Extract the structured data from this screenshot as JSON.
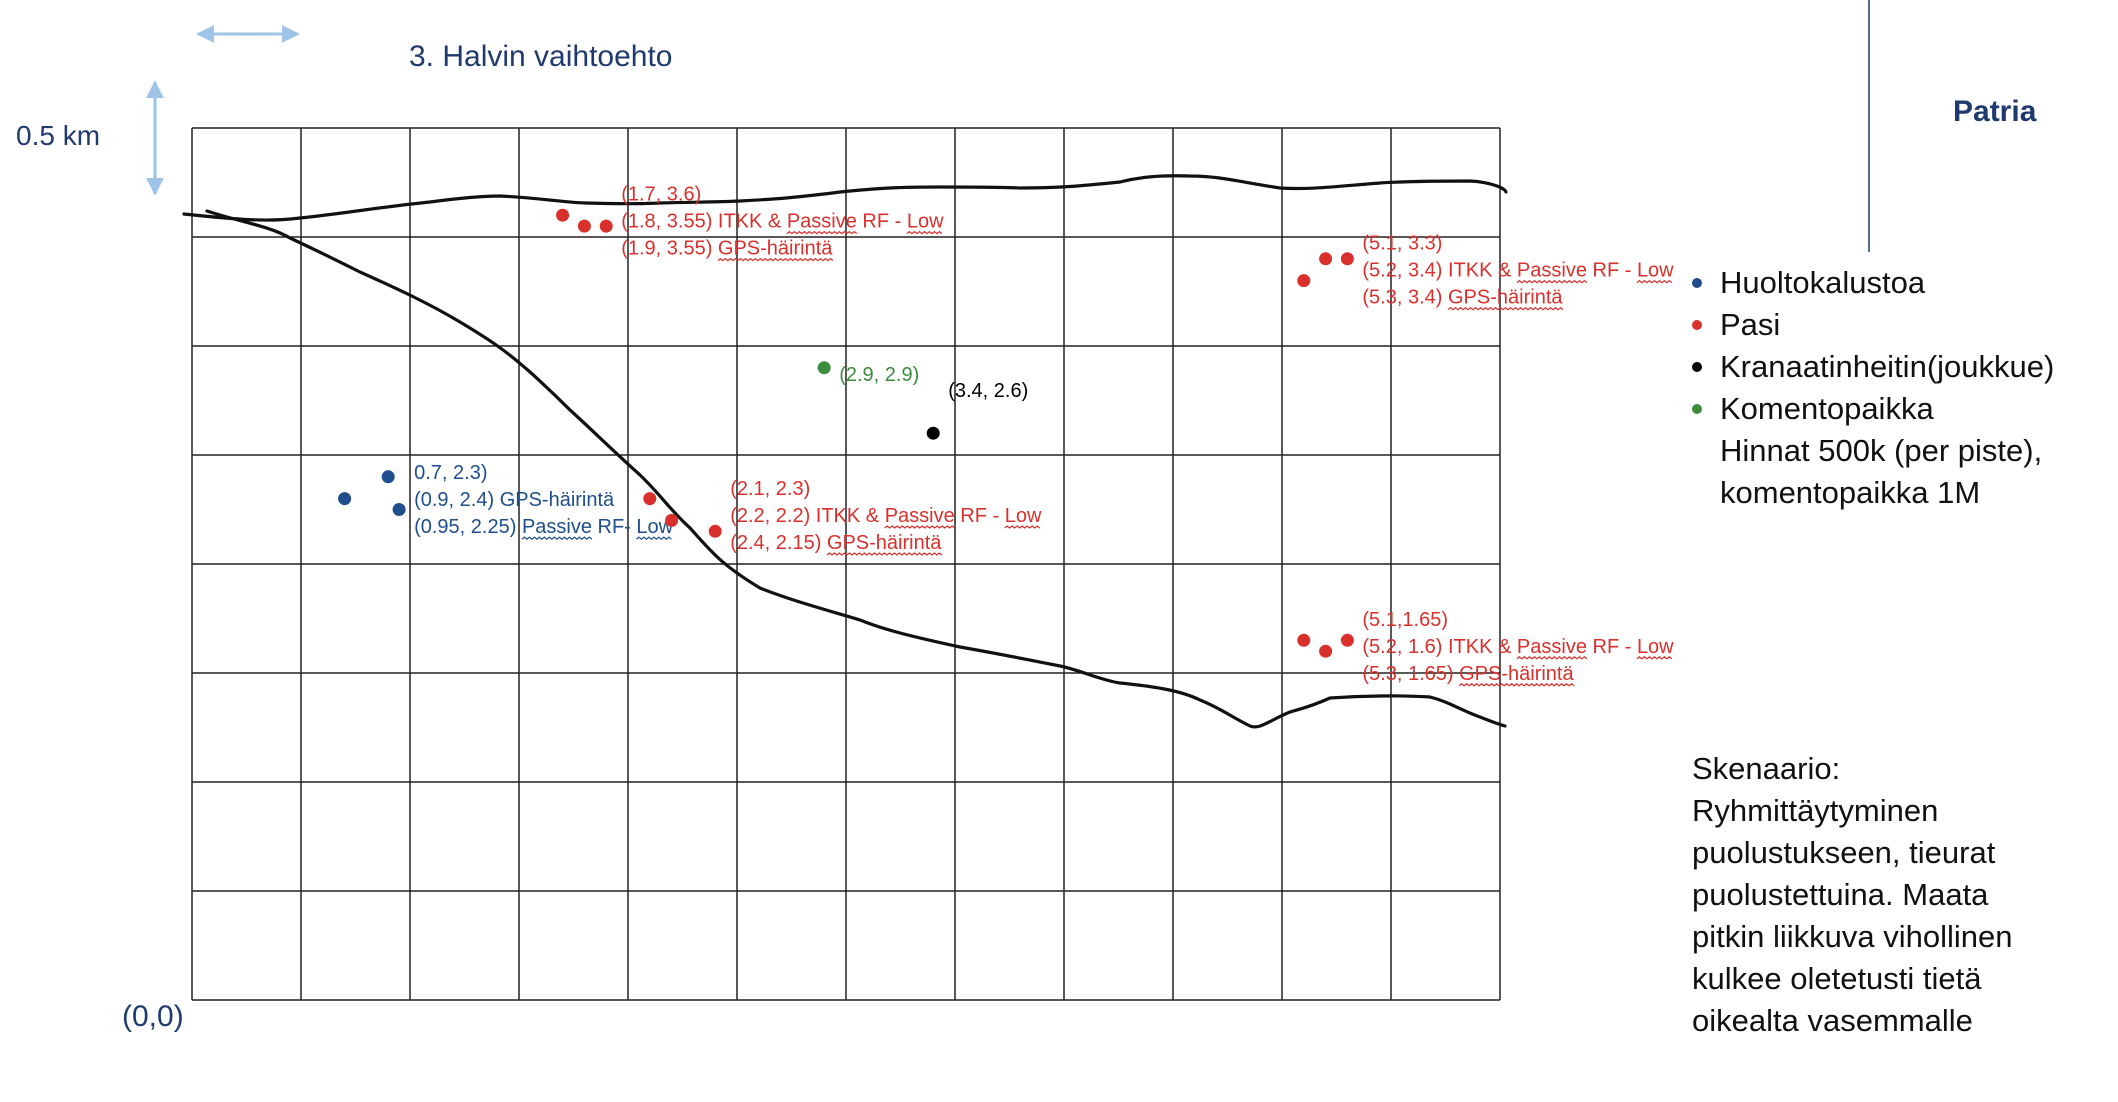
{
  "title": "3. Halvin vaihtoehto",
  "scale_label": "0.5 km",
  "origin_label": "(0,0)",
  "brand": "Patria",
  "colors": {
    "huolto": "#1f4e8c",
    "pasi": "#d9302c",
    "kranaatinheitin": "#000000",
    "komentopaikka": "#3c8c3c",
    "grid": "#222222",
    "arrow": "#9dc3e6",
    "text_blue": "#1f3a6e"
  },
  "legend": {
    "items": [
      {
        "label": "Huoltokalustoa",
        "color": "#1f4e8c"
      },
      {
        "label": "Pasi",
        "color": "#d9302c"
      },
      {
        "label": "Kranaatinheitin(joukkue)",
        "color": "#000000"
      },
      {
        "label": "Komentopaikka",
        "color": "#3c8c3c"
      }
    ],
    "notes": [
      "Hinnat 500k (per piste),",
      "komentopaikka 1M"
    ]
  },
  "scenario": [
    "Skenaario:",
    "Ryhmittäytyminen",
    "puolustukseen, tieurat",
    "puolustettuina. Maata",
    "pitkin liikkuva vihollinen",
    "kulkee oletetusti tietä",
    "oikealta vasemmalle"
  ],
  "groups": [
    {
      "type": "pasi",
      "points": [
        [
          1.7,
          3.6
        ],
        [
          1.8,
          3.55
        ],
        [
          1.9,
          3.55
        ]
      ],
      "labels": [
        [
          {
            "t": "(1.7, 3.6)"
          }
        ],
        [
          {
            "t": "(1.8, 3.55) ITKK & "
          },
          {
            "t": "Passive",
            "sq": true
          },
          {
            "t": " RF - "
          },
          {
            "t": "Low",
            "sq": true
          }
        ],
        [
          {
            "t": "(1.9, 3.55) "
          },
          {
            "t": "GPS-häirintä",
            "sq": true
          }
        ]
      ]
    },
    {
      "type": "pasi",
      "points": [
        [
          5.1,
          3.3
        ],
        [
          5.2,
          3.4
        ],
        [
          5.3,
          3.4
        ]
      ],
      "labels": [
        [
          {
            "t": "(5.1, 3.3)"
          }
        ],
        [
          {
            "t": "(5.2, 3.4) ITKK & "
          },
          {
            "t": "Passive",
            "sq": true
          },
          {
            "t": " RF - "
          },
          {
            "t": "Low",
            "sq": true
          }
        ],
        [
          {
            "t": "(5.3, 3.4) "
          },
          {
            "t": "GPS-häirintä",
            "sq": true
          }
        ]
      ]
    },
    {
      "type": "komentopaikka",
      "points": [
        [
          2.9,
          2.9
        ]
      ],
      "labels": [
        [
          {
            "t": "(2.9, 2.9)"
          }
        ]
      ]
    },
    {
      "type": "kranaatinheitin",
      "points": [
        [
          3.4,
          2.6
        ]
      ],
      "labels": [
        [
          {
            "t": "(3.4, 2.6)"
          }
        ]
      ]
    },
    {
      "type": "huolto",
      "points": [
        [
          0.7,
          2.3
        ],
        [
          0.9,
          2.4
        ],
        [
          0.95,
          2.25
        ]
      ],
      "labels": [
        [
          {
            "t": "0.7, 2.3)"
          }
        ],
        [
          {
            "t": "(0.9, 2.4) GPS-häirintä"
          }
        ],
        [
          {
            "t": "(0.95, 2.25) "
          },
          {
            "t": "Passive",
            "sq": true
          },
          {
            "t": " RF- "
          },
          {
            "t": "Low",
            "sq": true
          }
        ]
      ]
    },
    {
      "type": "pasi",
      "points": [
        [
          2.1,
          2.3
        ],
        [
          2.2,
          2.2
        ],
        [
          2.4,
          2.15
        ]
      ],
      "labels": [
        [
          {
            "t": "(2.1, 2.3)"
          }
        ],
        [
          {
            "t": "(2.2, 2.2) ITKK & "
          },
          {
            "t": "Passive",
            "sq": true
          },
          {
            "t": " RF - "
          },
          {
            "t": "Low",
            "sq": true
          }
        ],
        [
          {
            "t": "(2.4, 2.15) "
          },
          {
            "t": "GPS-häirintä",
            "sq": true
          }
        ]
      ]
    },
    {
      "type": "pasi",
      "points": [
        [
          5.1,
          1.65
        ],
        [
          5.2,
          1.6
        ],
        [
          5.3,
          1.65
        ]
      ],
      "labels": [
        [
          {
            "t": "(5.1,1.65)"
          }
        ],
        [
          {
            "t": "(5.2, 1.6) ITKK & "
          },
          {
            "t": "Passive",
            "sq": true
          },
          {
            "t": " RF - "
          },
          {
            "t": "Low",
            "sq": true
          }
        ],
        [
          {
            "t": "(5.3, 1.65) "
          },
          {
            "t": "GPS-häirintä",
            "sq": true
          }
        ]
      ]
    }
  ]
}
